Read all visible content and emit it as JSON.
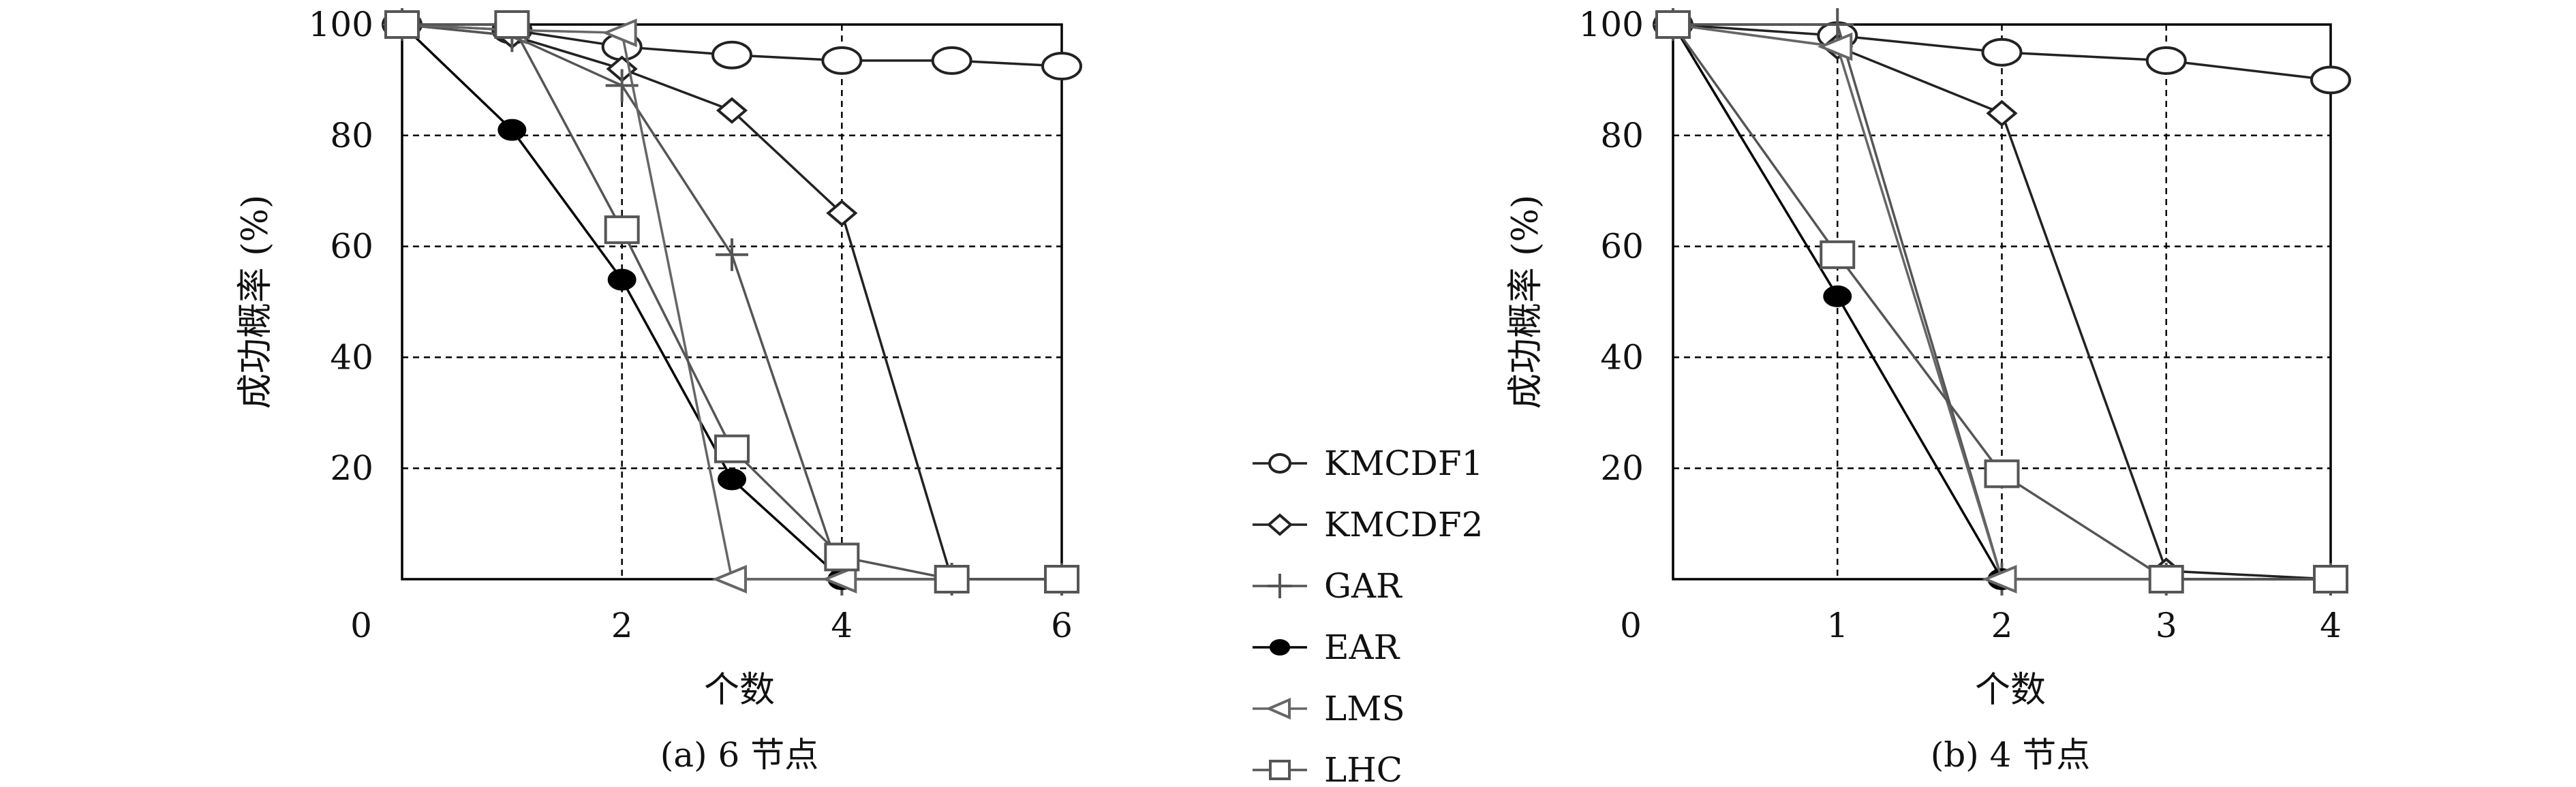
{
  "chart_data": [
    {
      "type": "line",
      "subtitle": "(a) 6 节点",
      "xlabel": "个数",
      "ylabel": "成功概率 (%)",
      "xlim": [
        0,
        6
      ],
      "ylim": [
        0,
        100
      ],
      "xticks": [
        "2",
        "4",
        "6"
      ],
      "yticks": [
        "0",
        "20",
        "40",
        "60",
        "80",
        "100"
      ],
      "grid": true,
      "series": [
        {
          "name": "KMCDF1",
          "x": [
            0,
            1,
            2,
            3,
            4,
            5,
            6
          ],
          "y": [
            100,
            99,
            96,
            94.5,
            93.5,
            93.5,
            92.5
          ]
        },
        {
          "name": "KMCDF2",
          "x": [
            0,
            1,
            2,
            3,
            4,
            5,
            6
          ],
          "y": [
            100,
            98,
            92,
            84.5,
            66,
            0,
            0
          ]
        },
        {
          "name": "GAR",
          "x": [
            0,
            1,
            2,
            3,
            4,
            5,
            6
          ],
          "y": [
            100,
            98,
            89,
            58.5,
            0,
            0,
            0
          ]
        },
        {
          "name": "EAR",
          "x": [
            0,
            1,
            2,
            3,
            4,
            5,
            6
          ],
          "y": [
            100,
            81,
            54,
            18,
            0,
            0,
            0
          ]
        },
        {
          "name": "LMS",
          "x": [
            0,
            1,
            2,
            3,
            4,
            5,
            6
          ],
          "y": [
            100,
            99,
            98.5,
            0,
            0,
            0,
            0
          ]
        },
        {
          "name": "LHC",
          "x": [
            0,
            1,
            2,
            3,
            4,
            5,
            6
          ],
          "y": [
            100,
            100,
            63,
            23.5,
            4,
            0,
            0
          ]
        }
      ]
    },
    {
      "type": "line",
      "subtitle": "(b) 4 节点",
      "xlabel": "个数",
      "ylabel": "成功概率 (%)",
      "xlim": [
        0,
        4
      ],
      "ylim": [
        0,
        100
      ],
      "xticks": [
        "1",
        "2",
        "3",
        "4"
      ],
      "yticks": [
        "0",
        "20",
        "40",
        "60",
        "80",
        "100"
      ],
      "grid": true,
      "series": [
        {
          "name": "KMCDF1",
          "x": [
            0,
            1,
            2,
            3,
            4
          ],
          "y": [
            100,
            98,
            95,
            93.5,
            90
          ]
        },
        {
          "name": "KMCDF2",
          "x": [
            0,
            1,
            2,
            3,
            4
          ],
          "y": [
            100,
            96,
            84,
            1.5,
            0
          ]
        },
        {
          "name": "GAR",
          "x": [
            0,
            1,
            2,
            3,
            4
          ],
          "y": [
            100,
            100,
            0,
            0,
            0
          ]
        },
        {
          "name": "EAR",
          "x": [
            0,
            1,
            2,
            3,
            4
          ],
          "y": [
            100,
            51,
            0,
            0,
            0
          ]
        },
        {
          "name": "LMS",
          "x": [
            0,
            1,
            2,
            3,
            4
          ],
          "y": [
            100,
            96,
            0,
            0,
            0
          ]
        },
        {
          "name": "LHC",
          "x": [
            0,
            1,
            2,
            3,
            4
          ],
          "y": [
            100,
            58.5,
            19,
            0,
            0
          ]
        }
      ]
    }
  ],
  "legend": {
    "placement": "center, between panels",
    "entries": [
      "KMCDF1",
      "KMCDF2",
      "GAR",
      "EAR",
      "LMS",
      "LHC"
    ]
  },
  "colors": {
    "KMCDF1": "#222222",
    "KMCDF2": "#222222",
    "GAR": "#555555",
    "EAR": "#000000",
    "LMS": "#666666",
    "LHC": "#555555",
    "grid": "#000000"
  },
  "markers": {
    "KMCDF1": "circle-open",
    "KMCDF2": "diamond-open",
    "GAR": "plus",
    "EAR": "ellipse-filled",
    "LMS": "triangle-left-open",
    "LHC": "square-open"
  }
}
